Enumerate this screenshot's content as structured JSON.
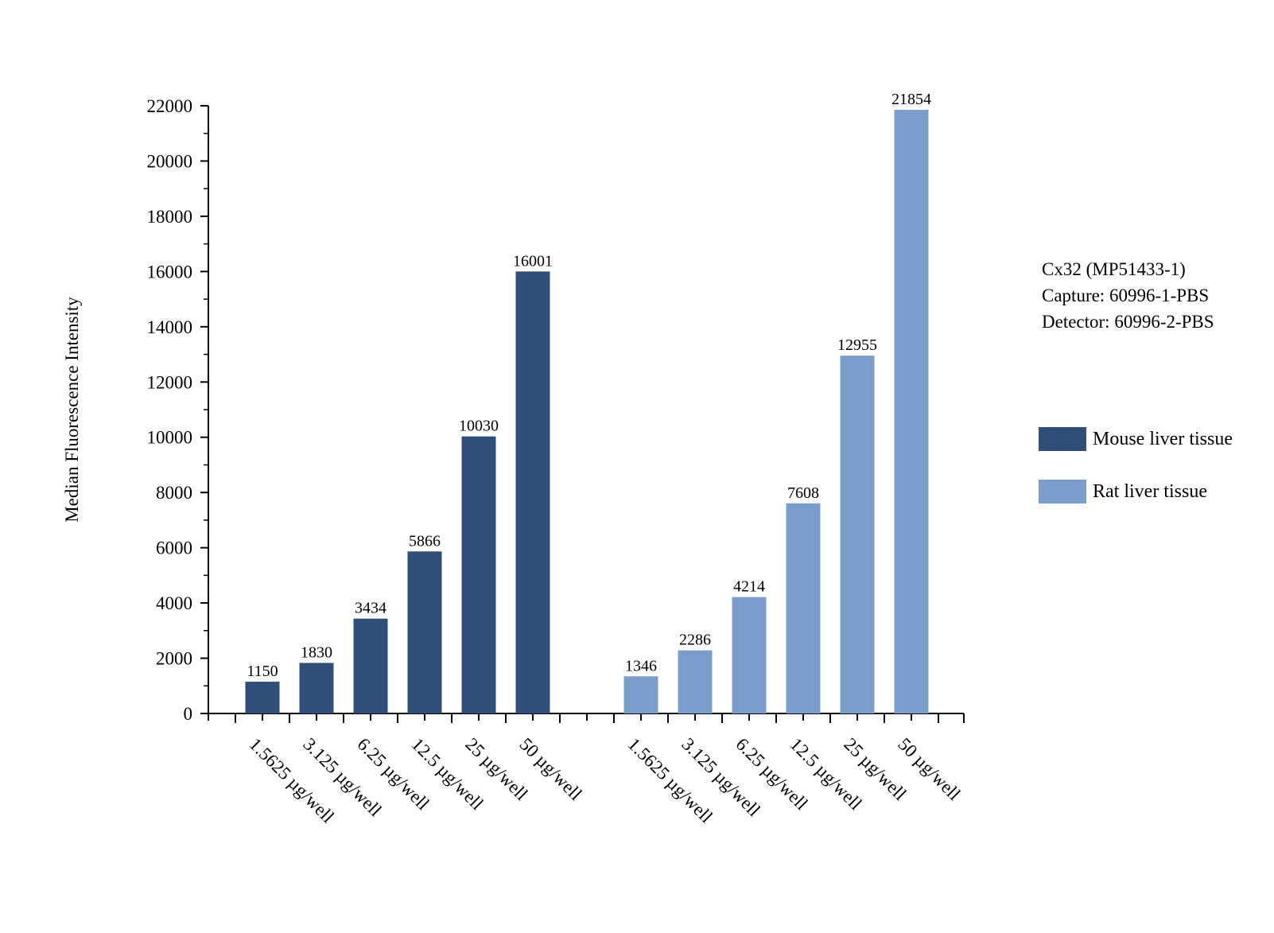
{
  "chart_data": {
    "type": "bar",
    "ylabel": "Median Fluorescence Intensity",
    "ylim": [
      0,
      22000
    ],
    "yticks": [
      0,
      2000,
      4000,
      6000,
      8000,
      10000,
      12000,
      14000,
      16000,
      18000,
      20000,
      22000
    ],
    "categories": [
      "1.5625 µg/well",
      "3.125 µg/well",
      "6.25 µg/well",
      "12.5 µg/well",
      "25 µg/well",
      "50 µg/well"
    ],
    "series": [
      {
        "name": "Mouse liver tissue",
        "color": "#2f4f78",
        "values": [
          1150,
          1830,
          3434,
          5866,
          10030,
          16001
        ]
      },
      {
        "name": "Rat liver tissue",
        "color": "#7b9dcb",
        "values": [
          1346,
          2286,
          4214,
          7608,
          12955,
          21854
        ]
      }
    ],
    "annotation": [
      "Cx32 (MP51433-1)",
      "Capture: 60996-1-PBS",
      "Detector: 60996-2-PBS"
    ],
    "legend_position": "right"
  }
}
